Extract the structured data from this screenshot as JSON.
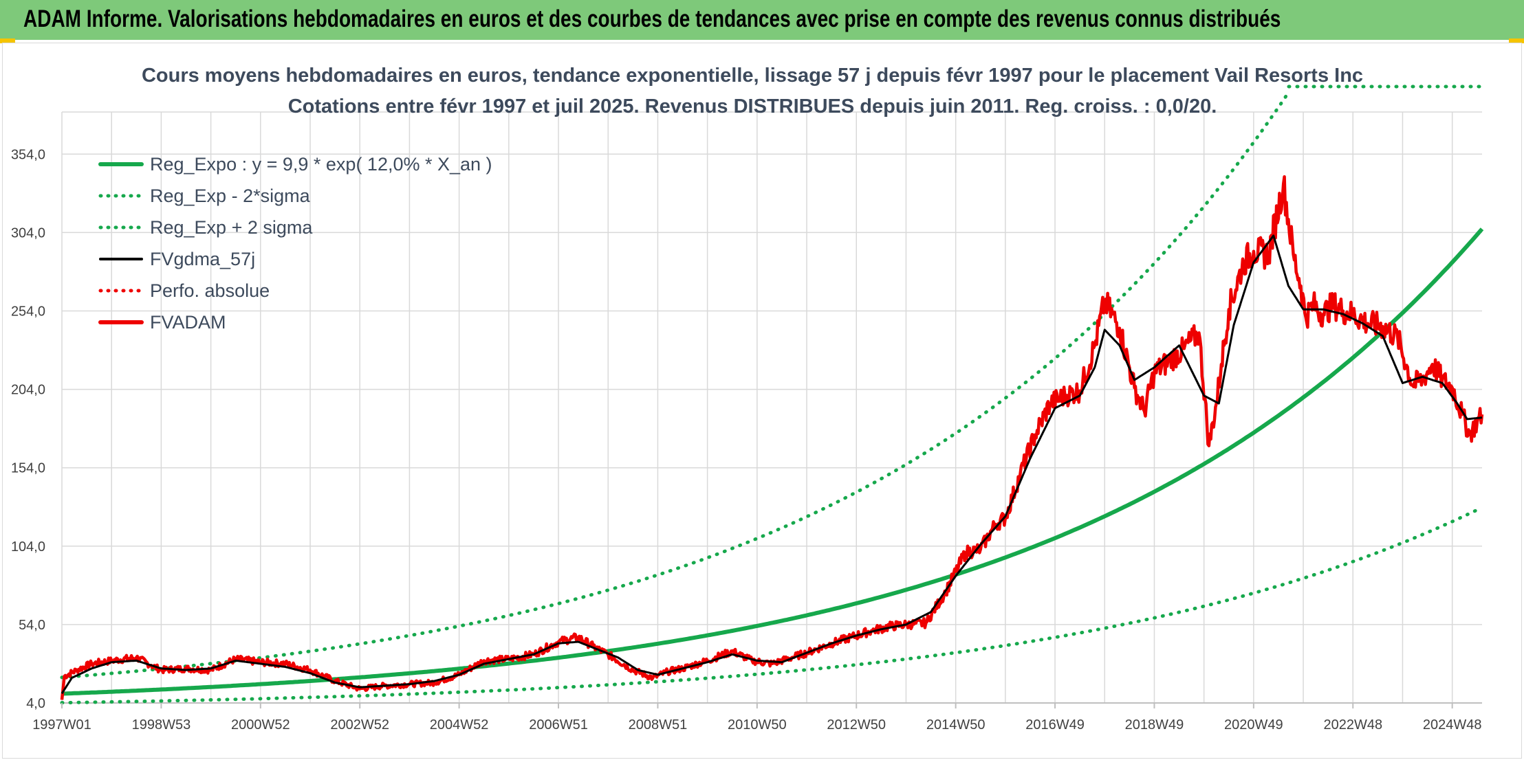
{
  "header": {
    "title": "ADAM Informe. Valorisations hebdomadaires en euros et des courbes de tendances avec prise en compte des revenus connus distribués"
  },
  "colors": {
    "header_bg": "#7ec97a",
    "reg_expo": "#16a84c",
    "fvgdma": "#000000",
    "fvadam": "#ee0000",
    "perfo": "#ee0000",
    "grid": "#d9d9d9"
  },
  "chart_data": {
    "type": "line",
    "title_line1": "Cours moyens hebdomadaires en euros, tendance exponentielle, lissage 57 j depuis févr 1997 pour le placement Vail Resorts Inc",
    "title_line2": "Cotations entre févr 1997 et juil 2025. Revenus DISTRIBUES depuis juin 2011. Reg. croiss. : 0,0/20.",
    "xlabel": "",
    "ylabel": "",
    "x_range": [
      1997.0,
      2025.6
    ],
    "ylim": [
      4,
      394
    ],
    "y_ticks": [
      "4,0",
      "54,0",
      "104,0",
      "154,0",
      "204,0",
      "254,0",
      "304,0",
      "354,0"
    ],
    "y_tick_values": [
      4,
      54,
      104,
      154,
      204,
      254,
      304,
      354
    ],
    "x_ticks": [
      "1997W01",
      "1998W53",
      "2000W52",
      "2002W52",
      "2004W52",
      "2006W51",
      "2008W51",
      "2010W50",
      "2012W50",
      "2014W50",
      "2016W49",
      "2018W49",
      "2020W49",
      "2022W48",
      "2024W48"
    ],
    "x_tick_values": [
      1997.0,
      1999.0,
      2001.0,
      2003.0,
      2005.0,
      2007.0,
      2009.0,
      2011.0,
      2013.0,
      2015.0,
      2017.0,
      2019.0,
      2021.0,
      2023.0,
      2025.0
    ],
    "grid": true,
    "legend_position": "top-left",
    "legend": [
      {
        "label": "Reg_Expo : y = 9,9 * exp( 12,0% *  X_an )",
        "style": "solid-thick",
        "color": "#16a84c"
      },
      {
        "label": "Reg_Exp - 2*sigma",
        "style": "dotted",
        "color": "#16a84c"
      },
      {
        "label": "Reg_Exp + 2 sigma",
        "style": "dotted",
        "color": "#16a84c"
      },
      {
        "label": "FVgdma_57j",
        "style": "solid",
        "color": "#000000"
      },
      {
        "label": "Perfo. absolue",
        "style": "dotted",
        "color": "#ee0000"
      },
      {
        "label": "FVADAM",
        "style": "solid-thick",
        "color": "#ee0000"
      }
    ],
    "regression": {
      "a": 9.9,
      "rate": 0.12,
      "lower_factor": 0.42,
      "upper_factor": 2.05
    },
    "series": [
      {
        "name": "FVADAM",
        "x": [
          1997.0,
          1997.05,
          1997.3,
          1997.6,
          1998.0,
          1998.5,
          1998.8,
          1999.0,
          1999.5,
          2000.0,
          2000.5,
          2001.0,
          2001.5,
          2002.0,
          2002.5,
          2003.0,
          2003.5,
          2004.0,
          2004.5,
          2005.0,
          2005.5,
          2006.0,
          2006.5,
          2007.0,
          2007.4,
          2007.7,
          2008.0,
          2008.5,
          2008.9,
          2009.2,
          2009.5,
          2010.0,
          2010.5,
          2010.9,
          2011.3,
          2011.7,
          2012.0,
          2012.5,
          2012.9,
          2013.3,
          2013.7,
          2014.0,
          2014.4,
          2014.8,
          2015.2,
          2015.5,
          2015.8,
          2016.0,
          2016.3,
          2016.6,
          2016.9,
          2017.2,
          2017.5,
          2017.8,
          2018.0,
          2018.3,
          2018.6,
          2018.8,
          2019.0,
          2019.3,
          2019.6,
          2019.9,
          2020.1,
          2020.25,
          2020.35,
          2020.5,
          2020.8,
          2021.0,
          2021.3,
          2021.6,
          2021.8,
          2021.95,
          2022.05,
          2022.2,
          2022.4,
          2022.6,
          2022.8,
          2023.0,
          2023.3,
          2023.6,
          2023.9,
          2024.2,
          2024.4,
          2024.6,
          2024.8,
          2025.0,
          2025.2,
          2025.35,
          2025.5,
          2025.6
        ],
        "y": [
          6,
          21,
          25,
          29,
          31,
          33,
          28,
          25,
          26,
          25,
          32,
          30,
          29,
          25,
          18,
          13,
          15,
          16,
          17,
          22,
          31,
          32,
          35,
          43,
          46,
          40,
          35,
          25,
          20,
          24,
          26,
          31,
          37,
          31,
          29,
          33,
          36,
          42,
          46,
          50,
          53,
          54,
          55,
          75,
          100,
          102,
          118,
          122,
          150,
          175,
          195,
          200,
          203,
          232,
          260,
          243,
          205,
          190,
          215,
          222,
          230,
          240,
          168,
          195,
          220,
          255,
          285,
          292,
          290,
          335,
          290,
          270,
          250,
          258,
          252,
          258,
          254,
          252,
          246,
          244,
          237,
          207,
          210,
          220,
          210,
          205,
          188,
          175,
          183,
          188
        ]
      },
      {
        "name": "FVgdma_57j",
        "x": [
          1997.0,
          1997.2,
          1997.6,
          1998.0,
          1998.5,
          1999.0,
          1999.5,
          2000.0,
          2000.5,
          2001.0,
          2001.5,
          2002.0,
          2002.5,
          2003.0,
          2003.5,
          2004.0,
          2004.5,
          2005.0,
          2005.5,
          2006.0,
          2006.5,
          2007.0,
          2007.4,
          2007.8,
          2008.2,
          2008.6,
          2009.0,
          2009.5,
          2010.0,
          2010.5,
          2011.0,
          2011.5,
          2012.0,
          2012.5,
          2013.0,
          2013.5,
          2014.0,
          2014.5,
          2015.0,
          2015.5,
          2016.0,
          2016.5,
          2017.0,
          2017.5,
          2017.8,
          2018.0,
          2018.3,
          2018.6,
          2019.0,
          2019.5,
          2020.0,
          2020.3,
          2020.6,
          2021.0,
          2021.4,
          2021.7,
          2022.0,
          2022.4,
          2022.8,
          2023.2,
          2023.6,
          2024.0,
          2024.4,
          2024.8,
          2025.1,
          2025.3,
          2025.6
        ],
        "y": [
          10,
          20,
          26,
          30,
          31,
          26,
          25,
          26,
          31,
          29,
          27,
          23,
          17,
          14,
          15,
          16,
          18,
          22,
          29,
          32,
          35,
          42,
          43,
          38,
          33,
          25,
          22,
          26,
          30,
          35,
          31,
          30,
          36,
          42,
          47,
          51,
          54,
          62,
          85,
          105,
          123,
          160,
          192,
          200,
          218,
          242,
          232,
          210,
          218,
          232,
          200,
          195,
          245,
          285,
          302,
          270,
          255,
          255,
          252,
          246,
          238,
          208,
          212,
          208,
          195,
          185,
          186
        ]
      },
      {
        "name": "Reg_Expo",
        "formula": "y = 9,9 * exp( 12,0% * X_an )"
      }
    ]
  }
}
